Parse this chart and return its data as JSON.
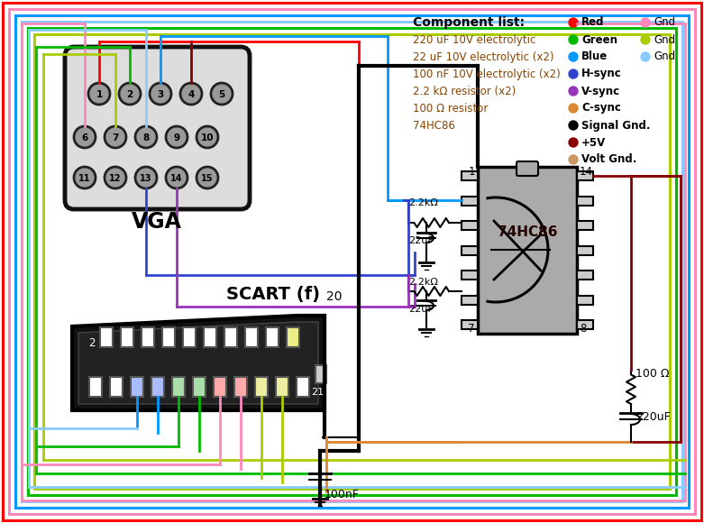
{
  "bg_color": "#ffffff",
  "component_list": [
    "220 uF 10V electrolytic",
    "22 uF 10V electrolytic (x2)",
    "100 nF 10V electrolytic (x2)",
    "2.2 kΩ resistor (x2)",
    "100 Ω resistor",
    "74HC86"
  ],
  "wire_colors": {
    "red": "#ff0000",
    "pink": "#ff88bb",
    "blue": "#0099ff",
    "light_blue": "#88ccff",
    "green": "#00bb00",
    "yellow_green": "#aacc00",
    "dark_red": "#880000",
    "black": "#000000",
    "purple_blue": "#3344cc",
    "purple": "#9933bb",
    "orange": "#dd8833",
    "tan": "#cc9966"
  },
  "legend_pairs": [
    [
      {
        "label": "Red",
        "color": "#ff0000",
        "bold": true
      },
      {
        "label": "Gnd",
        "color": "#ff88bb",
        "bold": false
      }
    ],
    [
      {
        "label": "Green",
        "color": "#00bb00",
        "bold": true
      },
      {
        "label": "Gnd",
        "color": "#aacc00",
        "bold": false
      }
    ],
    [
      {
        "label": "Blue",
        "color": "#0099ff",
        "bold": true
      },
      {
        "label": "Gnd",
        "color": "#88ccff",
        "bold": false
      }
    ],
    [
      {
        "label": "H-sync",
        "color": "#3344cc",
        "bold": true
      },
      null
    ],
    [
      {
        "label": "V-sync",
        "color": "#9933bb",
        "bold": true
      },
      null
    ],
    [
      {
        "label": "C-sync",
        "color": "#dd8833",
        "bold": true
      },
      null
    ],
    [
      {
        "label": "Signal Gnd.",
        "color": "#000000",
        "bold": true
      },
      null
    ],
    [
      {
        "label": "+5V",
        "color": "#880000",
        "bold": true
      },
      null
    ],
    [
      {
        "label": "Volt Gnd.",
        "color": "#cc9966",
        "bold": true
      },
      null
    ]
  ]
}
